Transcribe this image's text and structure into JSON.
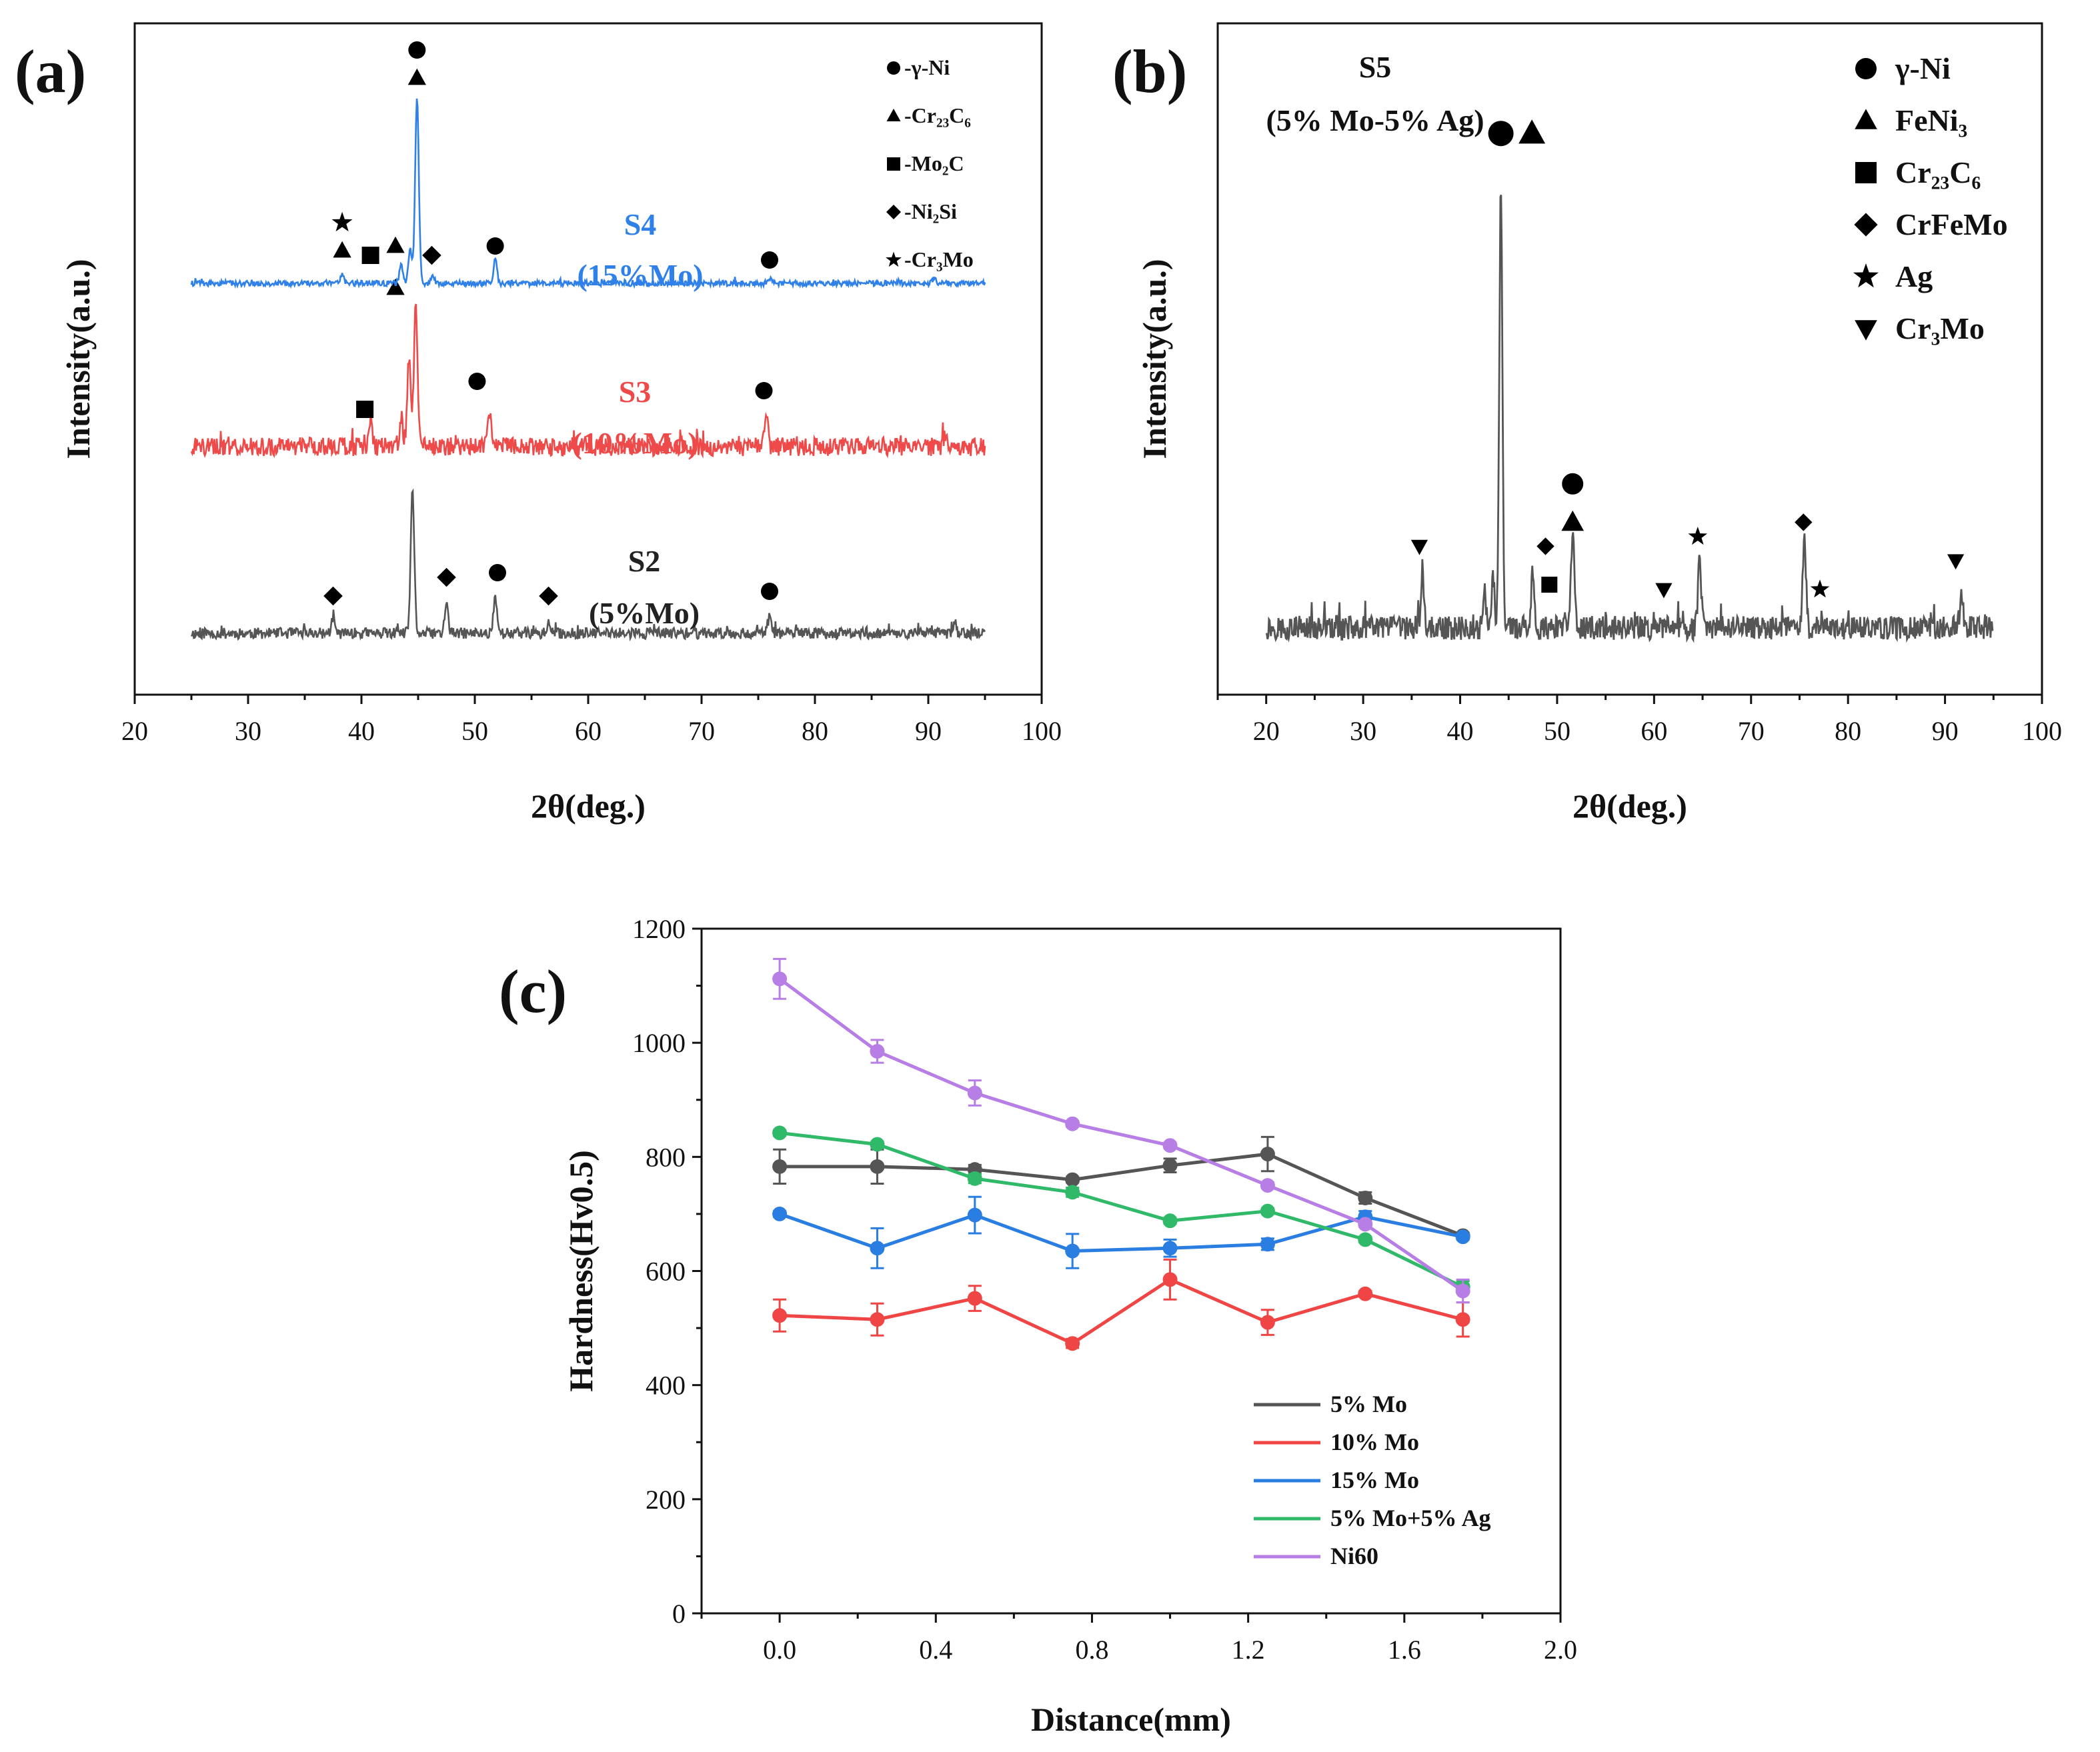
{
  "chart_data": [
    {
      "id": "a",
      "panel_label": "(a)",
      "type": "line",
      "title": "",
      "xlabel": "2θ(deg.)",
      "ylabel": "Intensity(a.u.)",
      "xlim": [
        20,
        100
      ],
      "xticks": [
        20,
        30,
        40,
        50,
        60,
        70,
        80,
        90,
        100
      ],
      "legend": {
        "position": "top-right",
        "entries": [
          {
            "symbol": "circle",
            "label": "-γ-Ni"
          },
          {
            "symbol": "triangle",
            "label": "-Cr₂₃C₆"
          },
          {
            "symbol": "square",
            "label": "-Mo₂C"
          },
          {
            "symbol": "diamond",
            "label": "-Ni₂Si"
          },
          {
            "symbol": "star",
            "label": "-Cr₃Mo"
          }
        ]
      },
      "series": [
        {
          "name": "S2 (5%Mo)",
          "label_line1": "S2",
          "label_line2": "(5%Mo)",
          "color": "#555555",
          "label_color": "#222222",
          "baseline": 0.05,
          "noise": 0.012,
          "x_range": [
            25,
            95
          ],
          "peaks": [
            [
              37.5,
              0.03
            ],
            [
              44.5,
              0.3
            ],
            [
              47.5,
              0.06
            ],
            [
              51.8,
              0.08
            ],
            [
              56.5,
              0.02
            ],
            [
              76.0,
              0.035
            ],
            [
              92.3,
              0.02
            ]
          ],
          "markers": [
            [
              37.5,
              "diamond",
              0.08
            ],
            [
              47.5,
              "diamond",
              0.12
            ],
            [
              52.0,
              "circle",
              0.13
            ],
            [
              56.5,
              "diamond",
              0.08
            ],
            [
              76.0,
              "circle",
              0.09
            ]
          ]
        },
        {
          "name": "S3 (10%Mo)",
          "label_line1": "S3",
          "label_line2": "(10%Mo)",
          "color": "#ee4a4a",
          "label_color": "#ee4a4a",
          "baseline": 0.45,
          "noise": 0.02,
          "x_range": [
            25,
            95
          ],
          "peaks": [
            [
              40.8,
              0.06
            ],
            [
              43.5,
              0.06
            ],
            [
              44.2,
              0.2
            ],
            [
              44.8,
              0.3
            ],
            [
              51.3,
              0.07
            ],
            [
              75.7,
              0.06
            ],
            [
              91.5,
              0.03
            ]
          ],
          "markers": [
            [
              40.3,
              "square",
              0.08
            ],
            [
              43.0,
              "triangle",
              0.34
            ],
            [
              50.2,
              "circle",
              0.14
            ],
            [
              75.5,
              "circle",
              0.12
            ]
          ]
        },
        {
          "name": "S4 (15%Mo)",
          "label_line1": "S4",
          "label_line2": "(15%Mo)",
          "color": "#2f80e8",
          "label_color": "#2f80e8",
          "baseline": 0.8,
          "noise": 0.006,
          "x_range": [
            25,
            95
          ],
          "peaks": [
            [
              38.3,
              0.02
            ],
            [
              43.5,
              0.04
            ],
            [
              44.3,
              0.07
            ],
            [
              44.9,
              0.4
            ],
            [
              46.3,
              0.015
            ],
            [
              51.8,
              0.05
            ],
            [
              76.0,
              0.01
            ],
            [
              90.5,
              0.01
            ]
          ],
          "markers": [
            [
              38.3,
              "triangle",
              0.07
            ],
            [
              38.3,
              "star",
              0.13
            ],
            [
              40.8,
              "square",
              0.06
            ],
            [
              43.0,
              "triangle",
              0.08
            ],
            [
              46.2,
              "diamond",
              0.06
            ],
            [
              44.9,
              "triangle",
              0.44
            ],
            [
              44.9,
              "circle",
              0.5
            ],
            [
              51.8,
              "circle",
              0.08
            ],
            [
              76.0,
              "circle",
              0.05
            ]
          ]
        }
      ]
    },
    {
      "id": "b",
      "panel_label": "(b)",
      "type": "line",
      "title": "",
      "xlabel": "2θ(deg.)",
      "ylabel": "Intensity(a.u.)",
      "xlim": [
        15,
        100
      ],
      "xticks": [
        20,
        30,
        40,
        50,
        60,
        70,
        80,
        90,
        100
      ],
      "sample_label_line1": "S5",
      "sample_label_line2": "(5% Mo-5% Ag)",
      "legend": {
        "position": "top-right",
        "entries": [
          {
            "symbol": "circle",
            "label": "γ-Ni"
          },
          {
            "symbol": "triangle",
            "label": "FeNi₃"
          },
          {
            "symbol": "square",
            "label": "Cr₂₃C₆"
          },
          {
            "symbol": "diamond",
            "label": "CrFeMo"
          },
          {
            "symbol": "star",
            "label": "Ag"
          },
          {
            "symbol": "triangle-down",
            "label": "Cr₃Mo"
          }
        ]
      },
      "series": [
        {
          "name": "S5",
          "color": "#555555",
          "baseline": 0.06,
          "noise": 0.025,
          "x_range": [
            20,
            95
          ],
          "peaks": [
            [
              36.1,
              0.12
            ],
            [
              42.5,
              0.08
            ],
            [
              43.4,
              0.1
            ],
            [
              44.2,
              0.92
            ],
            [
              47.5,
              0.12
            ],
            [
              51.6,
              0.2
            ],
            [
              64.7,
              0.14
            ],
            [
              75.5,
              0.2
            ],
            [
              91.7,
              0.07
            ]
          ],
          "markers": [
            [
              35.8,
              "triangle-down",
              0.17
            ],
            [
              44.2,
              "circle",
              1.03
            ],
            [
              47.4,
              "triangle",
              1.03
            ],
            [
              49.2,
              "square",
              0.09
            ],
            [
              48.8,
              "diamond",
              0.17
            ],
            [
              51.6,
              "triangle",
              0.22
            ],
            [
              51.6,
              "circle",
              0.3
            ],
            [
              61.0,
              "triangle-down",
              0.08
            ],
            [
              64.5,
              "star",
              0.19
            ],
            [
              75.4,
              "diamond",
              0.22
            ],
            [
              77.1,
              "star",
              0.08
            ],
            [
              91.1,
              "triangle-down",
              0.14
            ]
          ]
        }
      ]
    },
    {
      "id": "c",
      "panel_label": "(c)",
      "type": "line",
      "title": "",
      "xlabel": "Distance(mm)",
      "ylabel": "Hardness(Hv0.5)",
      "xlim": [
        -0.2,
        2.0
      ],
      "ylim": [
        0,
        1200
      ],
      "xticks": [
        0.0,
        0.4,
        0.8,
        1.2,
        1.6,
        2.0
      ],
      "yticks": [
        0,
        200,
        400,
        600,
        800,
        1000,
        1200
      ],
      "legend_position": "bottom-right",
      "x": [
        0.0,
        0.25,
        0.5,
        0.75,
        1.0,
        1.25,
        1.5,
        1.75
      ],
      "series": [
        {
          "name": "5% Mo",
          "color": "#555555",
          "marker": "circle",
          "values": [
            783,
            783,
            778,
            760,
            785,
            805,
            728,
            662
          ],
          "errors": [
            30,
            30,
            8,
            5,
            12,
            30,
            10,
            5
          ]
        },
        {
          "name": "10% Mo",
          "color": "#f04545",
          "marker": "circle",
          "values": [
            522,
            515,
            552,
            473,
            585,
            510,
            560,
            515
          ],
          "errors": [
            28,
            28,
            22,
            8,
            35,
            22,
            5,
            30
          ]
        },
        {
          "name": "15% Mo",
          "color": "#2a7de1",
          "marker": "circle",
          "values": [
            700,
            640,
            698,
            635,
            640,
            647,
            695,
            660
          ],
          "errors": [
            5,
            35,
            32,
            30,
            15,
            10,
            10,
            5
          ]
        },
        {
          "name": "5% Mo+5% Ag",
          "color": "#2fb968",
          "marker": "circle",
          "values": [
            842,
            822,
            762,
            738,
            688,
            705,
            655,
            572
          ],
          "errors": [
            5,
            5,
            8,
            8,
            5,
            5,
            5,
            10
          ]
        },
        {
          "name": "Ni60",
          "color": "#b77ee5",
          "marker": "circle",
          "values": [
            1112,
            985,
            912,
            858,
            820,
            750,
            682,
            565
          ],
          "errors": [
            35,
            20,
            22,
            5,
            5,
            5,
            5,
            20
          ]
        }
      ]
    }
  ]
}
